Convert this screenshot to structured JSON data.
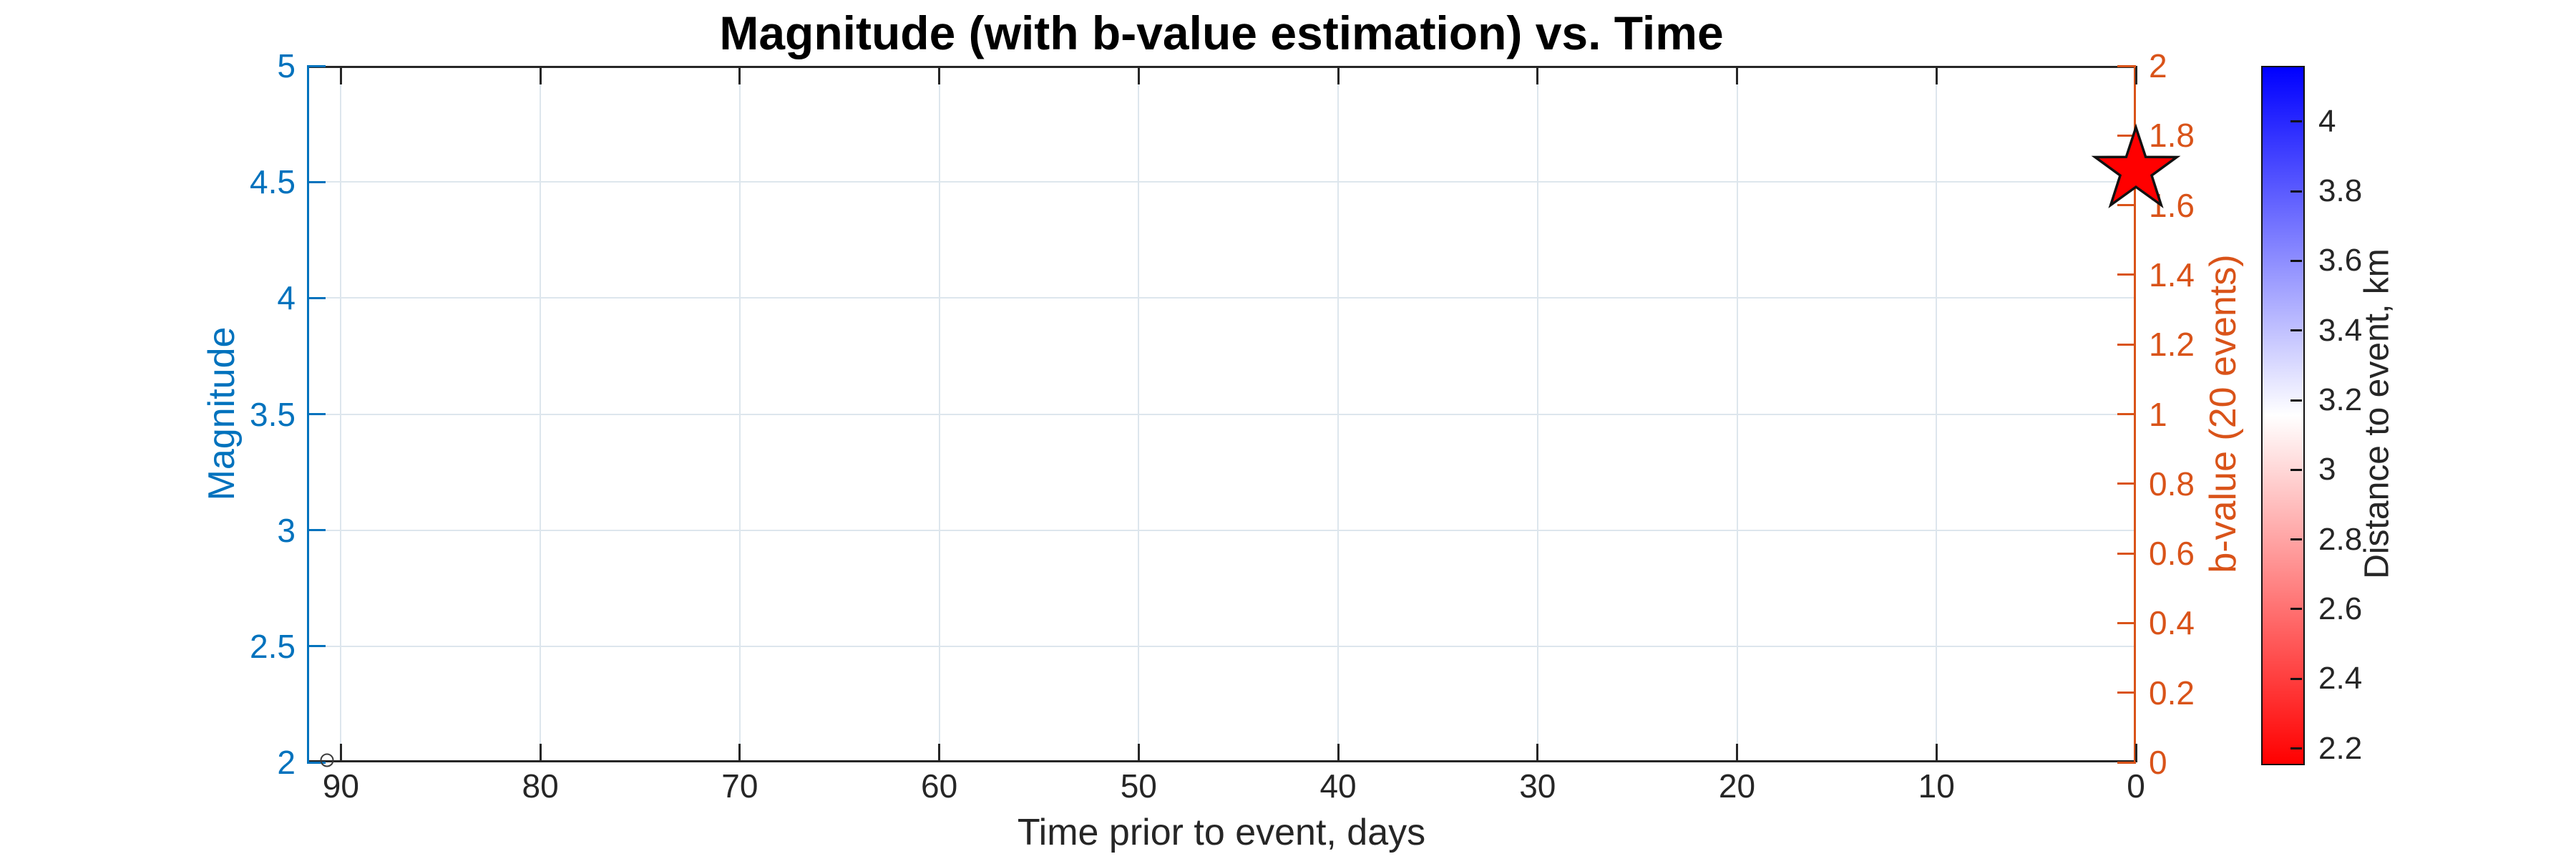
{
  "title": "Magnitude (with b-value estimation) vs. Time",
  "axes": {
    "x": {
      "label": "Time prior to event, days",
      "ticks": [
        90,
        80,
        70,
        60,
        50,
        40,
        30,
        20,
        10,
        0
      ],
      "direction": "reversed (days prior decrease left to right)",
      "color": "#262626"
    },
    "y_left": {
      "label": "Magnitude",
      "ticks": [
        5,
        4.5,
        4,
        3.5,
        3,
        2.5,
        2
      ],
      "range": [
        2,
        5
      ],
      "color": "#0072BD"
    },
    "y_right": {
      "label": "b-value (20 events)",
      "ticks": [
        2,
        1.8,
        1.6,
        1.4,
        1.2,
        1,
        0.8,
        0.6,
        0.4,
        0.2,
        0
      ],
      "range": [
        0,
        2
      ],
      "color": "#D95319"
    }
  },
  "colorbar": {
    "label": "Distance to event, km",
    "ticks": [
      4,
      3.8,
      3.6,
      3.4,
      3.2,
      3,
      2.8,
      2.6,
      2.4,
      2.2
    ],
    "range": [
      2.16,
      4.16
    ],
    "colormap_top_to_bottom": [
      "#0000FF",
      "#FFFFFF",
      "#FF0000"
    ],
    "text_color": "#262626"
  },
  "chart_data": {
    "type": "scatter",
    "title": "Magnitude (with b-value estimation) vs. Time",
    "xlabel": "Time prior to event, days",
    "ylabel_left": "Magnitude",
    "ylabel_right": "b-value (20 events)",
    "colorbar_label": "Distance to event, km",
    "x_range_days_left_to_right": [
      91.7,
      0
    ],
    "y_left_range": [
      2,
      5
    ],
    "y_right_range": [
      0,
      2
    ],
    "colorbar_range_km": [
      2.16,
      4.16
    ],
    "grid": true,
    "legend": "none",
    "series": [
      {
        "name": "catalog event (open circle)",
        "marker": "open-circle",
        "marker_edge": "#3B3B3B",
        "points": [
          {
            "time_prior_days": 90.7,
            "magnitude": 2.01
          }
        ]
      },
      {
        "name": "mainshock (red star)",
        "marker": "pentagram-star",
        "fill": "#FF0000",
        "edge": "#111111",
        "points": [
          {
            "time_prior_days": 0,
            "magnitude": 4.55
          }
        ]
      }
    ],
    "b_value_curve_points": []
  }
}
